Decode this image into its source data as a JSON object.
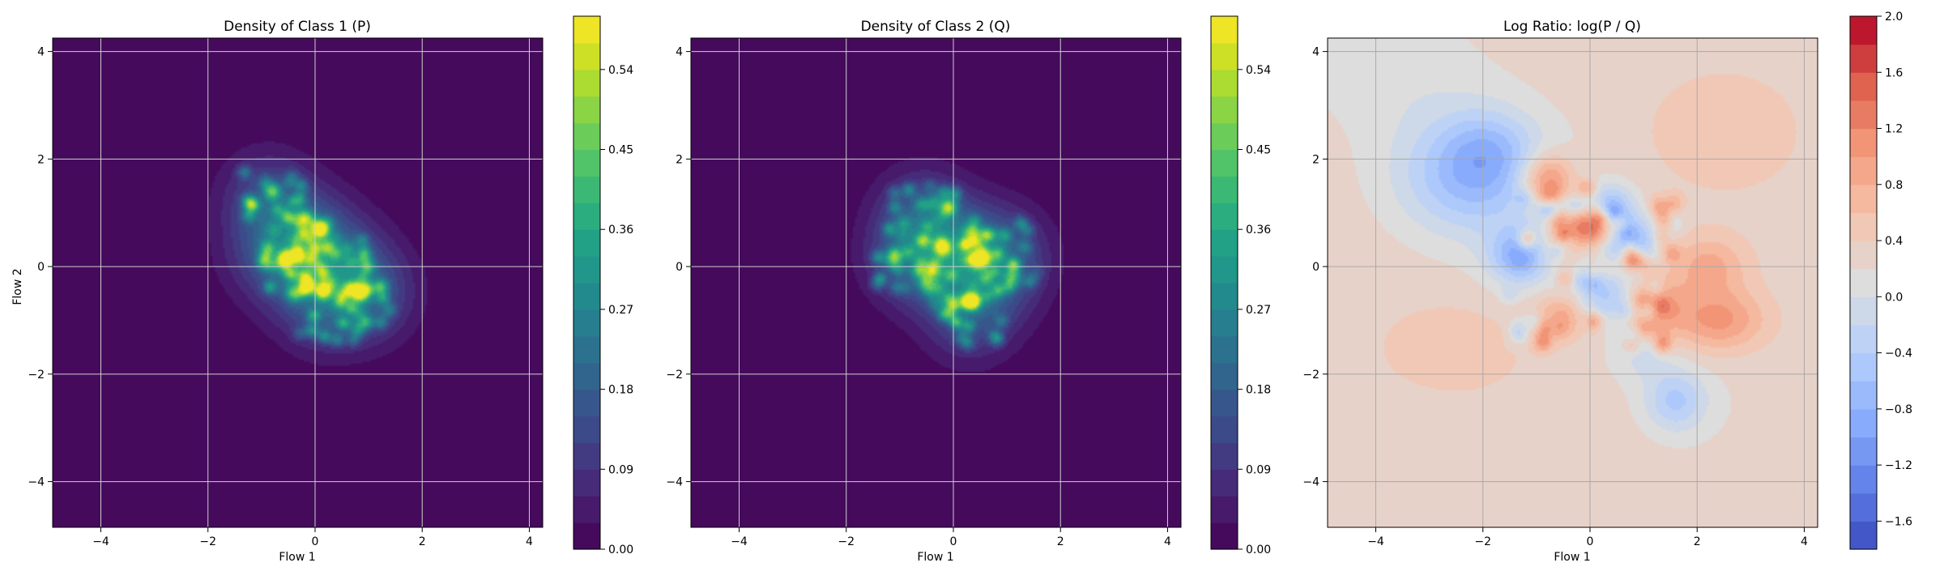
{
  "chart_data": [
    {
      "type": "heatmap",
      "title": "Density of Class 1 (P)",
      "xlabel": "Flow 1",
      "ylabel": "Flow 2",
      "xlim": [
        -4.9,
        4.25
      ],
      "ylim": [
        -4.85,
        4.25
      ],
      "xticks": [
        -4,
        -2,
        0,
        2,
        4
      ],
      "yticks": [
        -4,
        -2,
        0,
        2,
        4
      ],
      "grid": true,
      "colormap": "viridis",
      "background_color": "#440154",
      "colorbar": {
        "min": 0.0,
        "max": 0.6,
        "levels": 20,
        "ticks": [
          0.0,
          0.09,
          0.18,
          0.27,
          0.36,
          0.45,
          0.54
        ],
        "tick_labels": [
          "0.00",
          "0.09",
          "0.18",
          "0.27",
          "0.36",
          "0.45",
          "0.54"
        ]
      },
      "density": {
        "envelope_peaks": [
          {
            "x": -0.9,
            "y": 1.3,
            "amp": 0.12,
            "sx": 0.6,
            "sy": 0.6
          },
          {
            "x": -0.2,
            "y": 0.6,
            "amp": 0.15,
            "sx": 0.7,
            "sy": 0.6
          },
          {
            "x": 0.5,
            "y": -0.1,
            "amp": 0.13,
            "sx": 0.7,
            "sy": 0.6
          },
          {
            "x": 1.0,
            "y": -0.6,
            "amp": 0.12,
            "sx": 0.6,
            "sy": 0.6
          },
          {
            "x": -0.6,
            "y": 0.1,
            "amp": 0.12,
            "sx": 0.7,
            "sy": 0.6
          },
          {
            "x": 0.1,
            "y": -0.8,
            "amp": 0.1,
            "sx": 0.6,
            "sy": 0.6
          }
        ],
        "hotspots": [
          {
            "x": 0.1,
            "y": 0.7,
            "amp": 0.5
          },
          {
            "x": 0.15,
            "y": -0.45,
            "amp": 0.42
          },
          {
            "x": 0.85,
            "y": -0.5,
            "amp": 0.38
          },
          {
            "x": -0.8,
            "y": 1.4,
            "amp": 0.3
          },
          {
            "x": -0.55,
            "y": 0.15,
            "amp": 0.33
          },
          {
            "x": -0.2,
            "y": 0.9,
            "amp": 0.28
          },
          {
            "x": -0.4,
            "y": -0.5,
            "amp": 0.25
          }
        ]
      }
    },
    {
      "type": "heatmap",
      "title": "Density of Class 2 (Q)",
      "xlabel": "Flow 1",
      "ylabel": "",
      "xlim": [
        -4.9,
        4.25
      ],
      "ylim": [
        -4.85,
        4.25
      ],
      "xticks": [
        -4,
        -2,
        0,
        2,
        4
      ],
      "yticks": [
        -4,
        -2,
        0,
        2,
        4
      ],
      "grid": true,
      "colormap": "viridis",
      "background_color": "#440154",
      "colorbar": {
        "min": 0.0,
        "max": 0.6,
        "levels": 20,
        "ticks": [
          0.0,
          0.09,
          0.18,
          0.27,
          0.36,
          0.45,
          0.54
        ],
        "tick_labels": [
          "0.00",
          "0.09",
          "0.18",
          "0.27",
          "0.36",
          "0.45",
          "0.54"
        ]
      },
      "density": {
        "envelope_peaks": [
          {
            "x": -0.6,
            "y": 1.0,
            "amp": 0.12,
            "sx": 0.6,
            "sy": 0.6
          },
          {
            "x": 0.0,
            "y": 0.4,
            "amp": 0.15,
            "sx": 0.7,
            "sy": 0.6
          },
          {
            "x": 0.5,
            "y": -0.3,
            "amp": 0.13,
            "sx": 0.7,
            "sy": 0.6
          },
          {
            "x": -0.8,
            "y": 0.1,
            "amp": 0.12,
            "sx": 0.6,
            "sy": 0.6
          },
          {
            "x": 0.3,
            "y": -1.0,
            "amp": 0.1,
            "sx": 0.6,
            "sy": 0.6
          },
          {
            "x": 1.0,
            "y": 0.3,
            "amp": 0.1,
            "sx": 0.6,
            "sy": 0.6
          }
        ],
        "hotspots": [
          {
            "x": 0.35,
            "y": -0.65,
            "amp": 0.45
          },
          {
            "x": -0.1,
            "y": 1.1,
            "amp": 0.38
          },
          {
            "x": -0.2,
            "y": 0.35,
            "amp": 0.35
          },
          {
            "x": -1.1,
            "y": 0.2,
            "amp": 0.3
          },
          {
            "x": 0.5,
            "y": 0.1,
            "amp": 0.28
          },
          {
            "x": -0.5,
            "y": -0.3,
            "amp": 0.25
          },
          {
            "x": 1.1,
            "y": -0.2,
            "amp": 0.22
          }
        ]
      }
    },
    {
      "type": "heatmap",
      "title": "Log Ratio: log(P / Q)",
      "xlabel": "Flow 1",
      "ylabel": "",
      "xlim": [
        -4.9,
        4.25
      ],
      "ylim": [
        -4.85,
        4.25
      ],
      "xticks": [
        -4,
        -2,
        0,
        2,
        4
      ],
      "yticks": [
        -4,
        -2,
        0,
        2,
        4
      ],
      "grid": true,
      "colormap": "coolwarm",
      "colorbar": {
        "min": -1.8,
        "max": 2.0,
        "levels": 19,
        "ticks": [
          -1.6,
          -1.2,
          -0.8,
          -0.4,
          0.0,
          0.4,
          0.8,
          1.2,
          1.6,
          2.0
        ],
        "tick_labels": [
          "−1.6",
          "−1.2",
          "−0.8",
          "−0.4",
          "0.0",
          "0.4",
          "0.8",
          "1.2",
          "1.6",
          "2.0"
        ]
      },
      "ratio": {
        "baseline": 0.3,
        "blobs": [
          {
            "x": -2.3,
            "y": 1.6,
            "amp": -0.75,
            "sx": 0.9,
            "sy": 0.7
          },
          {
            "x": -1.9,
            "y": 2.2,
            "amp": -0.5,
            "sx": 0.6,
            "sy": 0.5
          },
          {
            "x": -0.8,
            "y": 1.6,
            "amp": 1.1,
            "sx": 0.35,
            "sy": 0.35
          },
          {
            "x": 0.0,
            "y": 0.75,
            "amp": 1.4,
            "sx": 0.3,
            "sy": 0.25
          },
          {
            "x": 0.4,
            "y": 1.1,
            "amp": -0.9,
            "sx": 0.3,
            "sy": 0.3
          },
          {
            "x": -1.3,
            "y": 0.2,
            "amp": -1.0,
            "sx": 0.4,
            "sy": 0.35
          },
          {
            "x": 0.8,
            "y": 0.5,
            "amp": -0.9,
            "sx": 0.35,
            "sy": 0.3
          },
          {
            "x": 1.2,
            "y": -0.8,
            "amp": 0.8,
            "sx": 0.4,
            "sy": 0.4
          },
          {
            "x": 0.3,
            "y": -0.6,
            "amp": -0.7,
            "sx": 0.4,
            "sy": 0.3
          },
          {
            "x": 2.4,
            "y": -1.0,
            "amp": 0.8,
            "sx": 0.6,
            "sy": 0.4
          },
          {
            "x": 2.2,
            "y": 0.0,
            "amp": 0.6,
            "sx": 0.5,
            "sy": 0.4
          },
          {
            "x": 1.6,
            "y": -2.5,
            "amp": -0.7,
            "sx": 0.4,
            "sy": 0.4
          },
          {
            "x": -0.5,
            "y": -0.9,
            "amp": 0.7,
            "sx": 0.35,
            "sy": 0.35
          },
          {
            "x": -2.5,
            "y": -1.5,
            "amp": 0.25,
            "sx": 1.0,
            "sy": 0.6
          },
          {
            "x": 2.5,
            "y": 2.5,
            "amp": 0.25,
            "sx": 1.0,
            "sy": 0.8
          },
          {
            "x": 1.0,
            "y": -1.5,
            "amp": -0.4,
            "sx": 0.4,
            "sy": 0.4
          },
          {
            "x": -0.6,
            "y": 0.4,
            "amp": 0.6,
            "sx": 0.3,
            "sy": 0.3
          }
        ]
      }
    }
  ]
}
